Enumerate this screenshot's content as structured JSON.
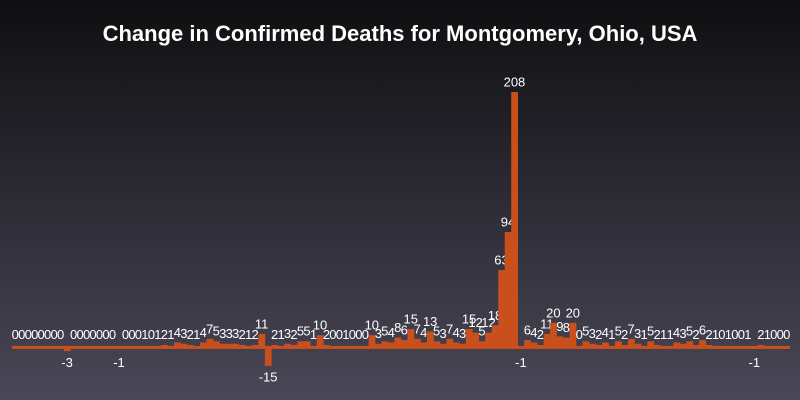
{
  "chart_data": {
    "type": "bar",
    "title": "Change in Confirmed Deaths for Montgomery, Ohio, USA",
    "color": "#c9501c",
    "ylim": [
      -20,
      230
    ],
    "values": [
      0,
      0,
      0,
      0,
      0,
      0,
      0,
      0,
      -3,
      0,
      0,
      0,
      0,
      0,
      0,
      0,
      -1,
      0,
      0,
      0,
      1,
      0,
      1,
      2,
      1,
      4,
      3,
      2,
      1,
      4,
      7,
      5,
      3,
      3,
      3,
      2,
      1,
      2,
      11,
      -15,
      2,
      1,
      3,
      2,
      5,
      5,
      1,
      10,
      2,
      0,
      0,
      1,
      0,
      0,
      0,
      10,
      3,
      5,
      4,
      8,
      6,
      15,
      7,
      4,
      13,
      5,
      3,
      7,
      4,
      3,
      15,
      12,
      5,
      12,
      18,
      63,
      94,
      208,
      -1,
      6,
      4,
      2,
      11,
      20,
      9,
      8,
      20,
      0,
      5,
      3,
      2,
      4,
      1,
      5,
      2,
      7,
      3,
      1,
      5,
      2,
      1,
      1,
      4,
      3,
      5,
      2,
      6,
      2,
      1,
      0,
      1,
      0,
      0,
      1,
      -1,
      2,
      1,
      0,
      0,
      0
    ]
  }
}
